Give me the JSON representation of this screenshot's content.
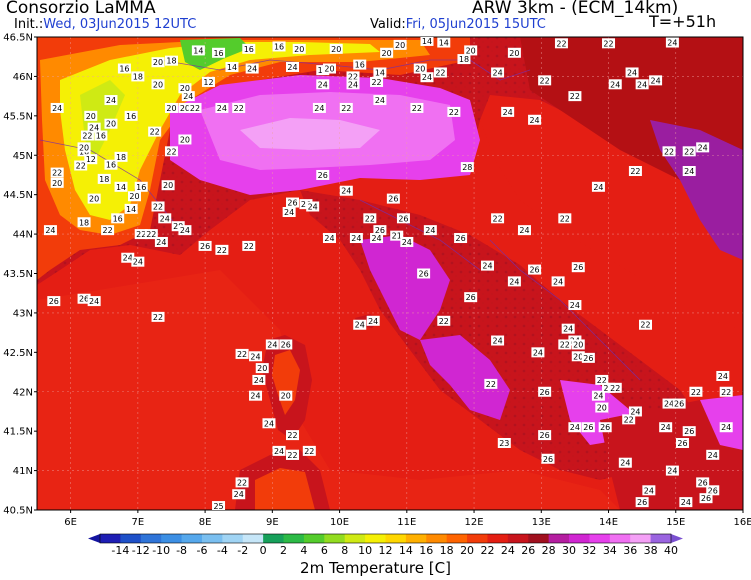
{
  "header": {
    "org": "Consorzio LaMMA",
    "init_label": "Init.:",
    "init_value": "Wed, 03Jun2015 12UTC",
    "model": "ARW 3km - (ECM_14km)",
    "valid_label": "Valid:",
    "valid_value": "Fri, 05Jun2015 15UTC",
    "lead": "T=+51h"
  },
  "axes": {
    "lat_labels": [
      "46.5N",
      "46N",
      "45.5N",
      "45N",
      "44.5N",
      "44N",
      "43.5N",
      "43N",
      "42.5N",
      "42N",
      "41.5N",
      "41N",
      "40.5N"
    ],
    "lon_labels": [
      "6E",
      "7E",
      "8E",
      "9E",
      "10E",
      "11E",
      "12E",
      "13E",
      "14E",
      "15E",
      "16E"
    ]
  },
  "colorbar": {
    "labels": [
      "-14",
      "-12",
      "-10",
      "-8",
      "-6",
      "-4",
      "-2",
      "0",
      "2",
      "4",
      "6",
      "8",
      "10",
      "12",
      "14",
      "16",
      "18",
      "20",
      "22",
      "24",
      "26",
      "28",
      "30",
      "32",
      "34",
      "36",
      "38",
      "40"
    ],
    "colors": [
      "#1e1eb4",
      "#1e50c8",
      "#2f74d8",
      "#3c8fe4",
      "#56a8ec",
      "#7abff0",
      "#a0d4f4",
      "#c6e6f8",
      "#16a05a",
      "#2cba46",
      "#54cc2c",
      "#92dc20",
      "#cfea14",
      "#f5f005",
      "#ffd700",
      "#ffb000",
      "#ff8a00",
      "#ff6400",
      "#f23c0a",
      "#e41e12",
      "#c8141c",
      "#a0101e",
      "#b41ea0",
      "#d026d2",
      "#e640ec",
      "#f070f2",
      "#f4a0f6",
      "#9a64e0"
    ],
    "title": "2m Temperature [C]"
  },
  "points": [
    {
      "t": "14",
      "lon": 7.9,
      "lat": 46.33
    },
    {
      "t": "16",
      "lon": 8.2,
      "lat": 46.3
    },
    {
      "t": "14",
      "lon": 8.4,
      "lat": 46.12
    },
    {
      "t": "16",
      "lon": 8.65,
      "lat": 46.35
    },
    {
      "t": "16",
      "lon": 9.1,
      "lat": 46.38
    },
    {
      "t": "20",
      "lon": 9.4,
      "lat": 46.35
    },
    {
      "t": "20",
      "lon": 9.95,
      "lat": 46.35
    },
    {
      "t": "20",
      "lon": 10.7,
      "lat": 46.3
    },
    {
      "t": "20",
      "lon": 10.9,
      "lat": 46.4
    },
    {
      "t": "14",
      "lon": 11.3,
      "lat": 46.45
    },
    {
      "t": "14",
      "lon": 11.55,
      "lat": 46.43
    },
    {
      "t": "20",
      "lon": 11.95,
      "lat": 46.33
    },
    {
      "t": "18",
      "lon": 11.85,
      "lat": 46.22
    },
    {
      "t": "20",
      "lon": 12.6,
      "lat": 46.3
    },
    {
      "t": "22",
      "lon": 13.3,
      "lat": 46.42
    },
    {
      "t": "22",
      "lon": 14.0,
      "lat": 46.42
    },
    {
      "t": "24",
      "lon": 14.95,
      "lat": 46.43
    },
    {
      "t": "18",
      "lon": 7.5,
      "lat": 46.2
    },
    {
      "t": "20",
      "lon": 7.3,
      "lat": 46.18
    },
    {
      "t": "18",
      "lon": 7.0,
      "lat": 46.0
    },
    {
      "t": "16",
      "lon": 6.8,
      "lat": 46.1
    },
    {
      "t": "12",
      "lon": 8.05,
      "lat": 45.93
    },
    {
      "t": "24",
      "lon": 8.7,
      "lat": 46.1
    },
    {
      "t": "24",
      "lon": 9.3,
      "lat": 46.12
    },
    {
      "t": "12",
      "lon": 9.75,
      "lat": 46.08
    },
    {
      "t": "20",
      "lon": 9.85,
      "lat": 46.1
    },
    {
      "t": "16",
      "lon": 10.3,
      "lat": 46.15
    },
    {
      "t": "14",
      "lon": 10.6,
      "lat": 46.05
    },
    {
      "t": "22",
      "lon": 10.2,
      "lat": 46.0
    },
    {
      "t": "22",
      "lon": 10.55,
      "lat": 45.93
    },
    {
      "t": "24",
      "lon": 11.3,
      "lat": 45.99
    },
    {
      "t": "22",
      "lon": 11.5,
      "lat": 46.05
    },
    {
      "t": "20",
      "lon": 11.2,
      "lat": 46.1
    },
    {
      "t": "24",
      "lon": 12.35,
      "lat": 46.05
    },
    {
      "t": "24",
      "lon": 9.75,
      "lat": 45.9
    },
    {
      "t": "24",
      "lon": 10.2,
      "lat": 45.9
    },
    {
      "t": "24",
      "lon": 5.8,
      "lat": 45.6
    },
    {
      "t": "20",
      "lon": 6.3,
      "lat": 45.5
    },
    {
      "t": "24",
      "lon": 6.6,
      "lat": 45.7
    },
    {
      "t": "24",
      "lon": 6.35,
      "lat": 45.35
    },
    {
      "t": "22",
      "lon": 6.25,
      "lat": 45.25
    },
    {
      "t": "16",
      "lon": 6.45,
      "lat": 45.25
    },
    {
      "t": "20",
      "lon": 6.6,
      "lat": 45.4
    },
    {
      "t": "16",
      "lon": 6.9,
      "lat": 45.5
    },
    {
      "t": "20",
      "lon": 7.5,
      "lat": 45.6
    },
    {
      "t": "20",
      "lon": 7.7,
      "lat": 45.6
    },
    {
      "t": "24",
      "lon": 7.75,
      "lat": 45.75
    },
    {
      "t": "20",
      "lon": 7.7,
      "lat": 45.85
    },
    {
      "t": "22",
      "lon": 7.85,
      "lat": 45.6
    },
    {
      "t": "22",
      "lon": 7.25,
      "lat": 45.3
    },
    {
      "t": "20",
      "lon": 7.3,
      "lat": 45.9
    },
    {
      "t": "16",
      "lon": 6.2,
      "lat": 45.05
    },
    {
      "t": "12",
      "lon": 6.3,
      "lat": 44.95
    },
    {
      "t": "18",
      "lon": 6.75,
      "lat": 44.98
    },
    {
      "t": "22",
      "lon": 5.8,
      "lat": 44.78
    },
    {
      "t": "20",
      "lon": 5.8,
      "lat": 44.65
    },
    {
      "t": "14",
      "lon": 6.75,
      "lat": 44.6
    },
    {
      "t": "16",
      "lon": 7.05,
      "lat": 44.6
    },
    {
      "t": "20",
      "lon": 6.95,
      "lat": 44.48
    },
    {
      "t": "14",
      "lon": 6.9,
      "lat": 44.32
    },
    {
      "t": "16",
      "lon": 6.7,
      "lat": 44.2
    },
    {
      "t": "18",
      "lon": 6.2,
      "lat": 44.15
    },
    {
      "t": "20",
      "lon": 7.45,
      "lat": 44.62
    },
    {
      "t": "20",
      "lon": 6.35,
      "lat": 44.45
    },
    {
      "t": "22",
      "lon": 7.3,
      "lat": 44.35
    },
    {
      "t": "24",
      "lon": 7.4,
      "lat": 44.2
    },
    {
      "t": "20",
      "lon": 7.6,
      "lat": 44.1
    },
    {
      "t": "24",
      "lon": 7.7,
      "lat": 44.05
    },
    {
      "t": "22",
      "lon": 7.05,
      "lat": 44.0
    },
    {
      "t": "22",
      "lon": 7.2,
      "lat": 44.0
    },
    {
      "t": "24",
      "lon": 7.35,
      "lat": 43.9
    },
    {
      "t": "22",
      "lon": 6.55,
      "lat": 44.05
    },
    {
      "t": "24",
      "lon": 5.7,
      "lat": 44.05
    },
    {
      "t": "22",
      "lon": 7.5,
      "lat": 45.05
    },
    {
      "t": "20",
      "lon": 7.7,
      "lat": 45.2
    },
    {
      "t": "24",
      "lon": 8.25,
      "lat": 45.6
    },
    {
      "t": "22",
      "lon": 8.5,
      "lat": 45.6
    },
    {
      "t": "22",
      "lon": 6.15,
      "lat": 44.87
    },
    {
      "t": "18",
      "lon": 6.5,
      "lat": 44.7
    },
    {
      "t": "16",
      "lon": 6.6,
      "lat": 44.88
    },
    {
      "t": "24",
      "lon": 6.85,
      "lat": 43.7
    },
    {
      "t": "20",
      "lon": 6.2,
      "lat": 45.1
    },
    {
      "t": "24",
      "lon": 9.7,
      "lat": 45.6
    },
    {
      "t": "22",
      "lon": 10.1,
      "lat": 45.6
    },
    {
      "t": "24",
      "lon": 10.6,
      "lat": 45.7
    },
    {
      "t": "22",
      "lon": 11.15,
      "lat": 45.6
    },
    {
      "t": "22",
      "lon": 11.7,
      "lat": 45.55
    },
    {
      "t": "24",
      "lon": 12.5,
      "lat": 45.55
    },
    {
      "t": "22",
      "lon": 13.5,
      "lat": 45.75
    },
    {
      "t": "24",
      "lon": 14.1,
      "lat": 45.9
    },
    {
      "t": "24",
      "lon": 14.35,
      "lat": 46.05
    },
    {
      "t": "24",
      "lon": 14.5,
      "lat": 45.9
    },
    {
      "t": "24",
      "lon": 14.7,
      "lat": 45.95
    },
    {
      "t": "22",
      "lon": 13.05,
      "lat": 45.95
    },
    {
      "t": "24",
      "lon": 12.9,
      "lat": 45.45
    },
    {
      "t": "22",
      "lon": 14.9,
      "lat": 45.05
    },
    {
      "t": "22",
      "lon": 15.2,
      "lat": 45.05
    },
    {
      "t": "24",
      "lon": 15.4,
      "lat": 45.1
    },
    {
      "t": "24",
      "lon": 15.2,
      "lat": 44.8
    },
    {
      "t": "22",
      "lon": 14.4,
      "lat": 44.8
    },
    {
      "t": "24",
      "lon": 13.85,
      "lat": 44.6
    },
    {
      "t": "28",
      "lon": 11.9,
      "lat": 44.85
    },
    {
      "t": "26",
      "lon": 9.75,
      "lat": 44.75
    },
    {
      "t": "24",
      "lon": 10.1,
      "lat": 44.55
    },
    {
      "t": "26",
      "lon": 10.8,
      "lat": 44.45
    },
    {
      "t": "26",
      "lon": 9.3,
      "lat": 44.4
    },
    {
      "t": "26",
      "lon": 9.5,
      "lat": 44.38
    },
    {
      "t": "24",
      "lon": 9.6,
      "lat": 44.35
    },
    {
      "t": "24",
      "lon": 9.25,
      "lat": 44.28
    },
    {
      "t": "22",
      "lon": 10.45,
      "lat": 44.2
    },
    {
      "t": "26",
      "lon": 10.95,
      "lat": 44.2
    },
    {
      "t": "22",
      "lon": 12.35,
      "lat": 44.2
    },
    {
      "t": "22",
      "lon": 13.35,
      "lat": 44.2
    },
    {
      "t": "24",
      "lon": 9.85,
      "lat": 43.95
    },
    {
      "t": "24",
      "lon": 10.25,
      "lat": 43.95
    },
    {
      "t": "26",
      "lon": 10.6,
      "lat": 44.05
    },
    {
      "t": "24",
      "lon": 11.35,
      "lat": 44.05
    },
    {
      "t": "26",
      "lon": 11.8,
      "lat": 43.95
    },
    {
      "t": "24",
      "lon": 12.75,
      "lat": 44.05
    },
    {
      "t": "22",
      "lon": 8.65,
      "lat": 43.85
    },
    {
      "t": "22",
      "lon": 8.25,
      "lat": 43.8
    },
    {
      "t": "26",
      "lon": 8.0,
      "lat": 43.85
    },
    {
      "t": "24",
      "lon": 7.0,
      "lat": 43.65
    },
    {
      "t": "21",
      "lon": 10.85,
      "lat": 43.98
    },
    {
      "t": "24",
      "lon": 10.55,
      "lat": 43.95
    },
    {
      "t": "24",
      "lon": 11.0,
      "lat": 43.9
    },
    {
      "t": "24",
      "lon": 12.2,
      "lat": 43.6
    },
    {
      "t": "26",
      "lon": 12.9,
      "lat": 43.55
    },
    {
      "t": "26",
      "lon": 13.55,
      "lat": 43.58
    },
    {
      "t": "24",
      "lon": 13.25,
      "lat": 43.4
    },
    {
      "t": "24",
      "lon": 12.6,
      "lat": 43.4
    },
    {
      "t": "26",
      "lon": 11.25,
      "lat": 43.5
    },
    {
      "t": "26",
      "lon": 11.95,
      "lat": 43.2
    },
    {
      "t": "24",
      "lon": 13.5,
      "lat": 43.1
    },
    {
      "t": "22",
      "lon": 11.55,
      "lat": 42.9
    },
    {
      "t": "24",
      "lon": 10.3,
      "lat": 42.85
    },
    {
      "t": "24",
      "lon": 10.5,
      "lat": 42.9
    },
    {
      "t": "26",
      "lon": 5.75,
      "lat": 43.15
    },
    {
      "t": "26",
      "lon": 6.2,
      "lat": 43.18
    },
    {
      "t": "24",
      "lon": 6.35,
      "lat": 43.15
    },
    {
      "t": "22",
      "lon": 7.3,
      "lat": 42.95
    },
    {
      "t": "24",
      "lon": 13.4,
      "lat": 42.8
    },
    {
      "t": "24",
      "lon": 13.5,
      "lat": 42.65
    },
    {
      "t": "22",
      "lon": 13.35,
      "lat": 42.6
    },
    {
      "t": "20",
      "lon": 13.55,
      "lat": 42.6
    },
    {
      "t": "20",
      "lon": 13.55,
      "lat": 42.45
    },
    {
      "t": "26",
      "lon": 13.7,
      "lat": 42.43
    },
    {
      "t": "24",
      "lon": 12.35,
      "lat": 42.65
    },
    {
      "t": "24",
      "lon": 12.95,
      "lat": 42.5
    },
    {
      "t": "22",
      "lon": 13.9,
      "lat": 42.15
    },
    {
      "t": "22",
      "lon": 14.0,
      "lat": 42.05
    },
    {
      "t": "24",
      "lon": 13.85,
      "lat": 41.95
    },
    {
      "t": "20",
      "lon": 13.9,
      "lat": 41.8
    },
    {
      "t": "22",
      "lon": 14.1,
      "lat": 42.05
    },
    {
      "t": "26",
      "lon": 13.05,
      "lat": 42.0
    },
    {
      "t": "22",
      "lon": 14.55,
      "lat": 42.85
    },
    {
      "t": "24",
      "lon": 15.7,
      "lat": 42.2
    },
    {
      "t": "22",
      "lon": 15.3,
      "lat": 42.0
    },
    {
      "t": "22",
      "lon": 15.75,
      "lat": 42.0
    },
    {
      "t": "22",
      "lon": 12.25,
      "lat": 42.1
    },
    {
      "t": "22",
      "lon": 14.3,
      "lat": 41.65
    },
    {
      "t": "24",
      "lon": 14.9,
      "lat": 41.85
    },
    {
      "t": "26",
      "lon": 15.05,
      "lat": 41.85
    },
    {
      "t": "24",
      "lon": 14.4,
      "lat": 41.75
    },
    {
      "t": "26",
      "lon": 13.95,
      "lat": 41.55
    },
    {
      "t": "26",
      "lon": 13.7,
      "lat": 41.55
    },
    {
      "t": "24",
      "lon": 13.5,
      "lat": 41.55
    },
    {
      "t": "26",
      "lon": 13.05,
      "lat": 41.45
    },
    {
      "t": "24",
      "lon": 14.85,
      "lat": 41.55
    },
    {
      "t": "26",
      "lon": 15.2,
      "lat": 41.5
    },
    {
      "t": "24",
      "lon": 15.75,
      "lat": 41.55
    },
    {
      "t": "24",
      "lon": 15.55,
      "lat": 41.2
    },
    {
      "t": "26",
      "lon": 15.1,
      "lat": 41.35
    },
    {
      "t": "23",
      "lon": 12.45,
      "lat": 41.35
    },
    {
      "t": "26",
      "lon": 13.1,
      "lat": 41.15
    },
    {
      "t": "24",
      "lon": 14.25,
      "lat": 41.1
    },
    {
      "t": "24",
      "lon": 14.95,
      "lat": 41.0
    },
    {
      "t": "26",
      "lon": 15.4,
      "lat": 40.85
    },
    {
      "t": "26",
      "lon": 15.55,
      "lat": 40.75
    },
    {
      "t": "24",
      "lon": 15.15,
      "lat": 40.6
    },
    {
      "t": "24",
      "lon": 14.6,
      "lat": 40.75
    },
    {
      "t": "26",
      "lon": 14.5,
      "lat": 40.6
    },
    {
      "t": "26",
      "lon": 15.45,
      "lat": 40.65
    },
    {
      "t": "24",
      "lon": 9.0,
      "lat": 42.6
    },
    {
      "t": "26",
      "lon": 9.2,
      "lat": 42.6
    },
    {
      "t": "22",
      "lon": 8.55,
      "lat": 42.48
    },
    {
      "t": "24",
      "lon": 8.75,
      "lat": 42.45
    },
    {
      "t": "20",
      "lon": 8.85,
      "lat": 42.3
    },
    {
      "t": "24",
      "lon": 8.8,
      "lat": 42.15
    },
    {
      "t": "24",
      "lon": 8.75,
      "lat": 41.95
    },
    {
      "t": "20",
      "lon": 9.2,
      "lat": 41.95
    },
    {
      "t": "24",
      "lon": 8.95,
      "lat": 41.6
    },
    {
      "t": "22",
      "lon": 9.3,
      "lat": 41.45
    },
    {
      "t": "24",
      "lon": 9.1,
      "lat": 41.25
    },
    {
      "t": "24",
      "lon": 9.3,
      "lat": 41.2
    },
    {
      "t": "22",
      "lon": 9.55,
      "lat": 41.25
    },
    {
      "t": "22",
      "lon": 8.55,
      "lat": 40.85
    },
    {
      "t": "24",
      "lon": 8.5,
      "lat": 40.7
    },
    {
      "t": "25",
      "lon": 8.2,
      "lat": 40.55
    },
    {
      "t": "22",
      "lon": 9.3,
      "lat": 41.2
    }
  ]
}
